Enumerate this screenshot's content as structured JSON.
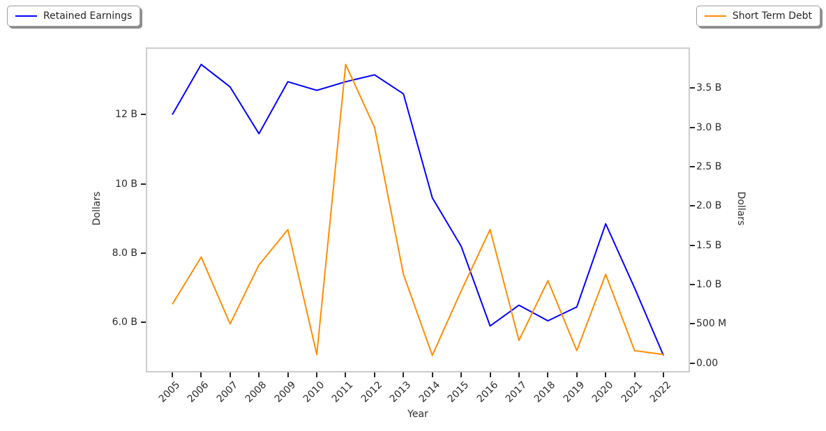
{
  "legend": {
    "left": {
      "label": "Retained Earnings",
      "color": "#0000ff"
    },
    "right": {
      "label": "Short Term Debt",
      "color": "#ff8c00"
    }
  },
  "chart_data": {
    "type": "line",
    "title": "",
    "xlabel": "Year",
    "categories": [
      "2005",
      "2006",
      "2007",
      "2008",
      "2009",
      "2010",
      "2011",
      "2012",
      "2013",
      "2014",
      "2015",
      "2016",
      "2017",
      "2018",
      "2019",
      "2020",
      "2021",
      "2022"
    ],
    "x_tick_rotation_deg": 45,
    "grid": false,
    "legend_position": [
      "outside-upper-left",
      "outside-upper-right"
    ],
    "series": [
      {
        "name": "Retained Earnings",
        "axis": "left",
        "color": "#0000ff",
        "units": "USD billions",
        "values_in_billions": [
          12.0,
          13.45,
          12.8,
          11.45,
          12.95,
          12.7,
          12.95,
          13.15,
          12.6,
          9.6,
          8.2,
          5.9,
          6.5,
          6.05,
          6.45,
          8.85,
          7.0,
          5.05
        ]
      },
      {
        "name": "Short Term Debt",
        "axis": "right",
        "color": "#ff8c00",
        "units": "USD billions",
        "values_in_billions": [
          0.75,
          1.35,
          0.5,
          1.25,
          1.7,
          0.11,
          3.8,
          3.0,
          1.13,
          0.1,
          0.92,
          1.7,
          0.29,
          1.05,
          0.16,
          1.13,
          0.16,
          0.11
        ]
      }
    ],
    "left_axis": {
      "label": "Dollars",
      "tick_labels": [
        "12 B",
        "10 B",
        "8.0 B",
        "6.0 B"
      ],
      "tick_values_billions": [
        12,
        10,
        8,
        6
      ],
      "range_billions": [
        4.6,
        13.9
      ]
    },
    "right_axis": {
      "label": "Dollars",
      "tick_labels": [
        "3.5 B",
        "3.0 B",
        "2.5 B",
        "2.0 B",
        "1.5 B",
        "1.0 B",
        "500 M",
        "0.00"
      ],
      "tick_values_billions": [
        3.5,
        3.0,
        2.5,
        2.0,
        1.5,
        1.0,
        0.5,
        0
      ],
      "range_billions": [
        -0.1,
        4.0
      ]
    }
  },
  "colors": {
    "axis_spine": "#cccccc",
    "tick_mark": "#262626",
    "text": "#2b2b2b",
    "background": "#ffffff"
  }
}
